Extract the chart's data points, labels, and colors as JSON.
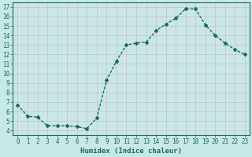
{
  "xlabel": "Humidex (Indice chaleur)",
  "x": [
    0,
    1,
    2,
    3,
    4,
    5,
    6,
    7,
    8,
    9,
    10,
    11,
    12,
    13,
    14,
    15,
    16,
    17,
    18,
    19,
    20,
    21,
    22,
    23
  ],
  "y": [
    6.7,
    5.5,
    5.4,
    4.5,
    4.5,
    4.5,
    4.4,
    4.2,
    5.3,
    9.3,
    11.3,
    13.0,
    13.2,
    13.3,
    14.5,
    15.2,
    15.8,
    16.8,
    16.8,
    15.1,
    14.0,
    13.2,
    12.5,
    12.0
  ],
  "line_color": "#1a6b5a",
  "bg_color": "#c8e8e8",
  "grid_color": "#b0d8d0",
  "tick_label_color": "#1a6b5a",
  "xlabel_color": "#1a6b5a",
  "ylim": [
    3.5,
    17.5
  ],
  "xlim": [
    -0.5,
    23.5
  ],
  "yticks": [
    4,
    5,
    6,
    7,
    8,
    9,
    10,
    11,
    12,
    13,
    14,
    15,
    16,
    17
  ],
  "xticks": [
    0,
    1,
    2,
    3,
    4,
    5,
    6,
    7,
    8,
    9,
    10,
    11,
    12,
    13,
    14,
    15,
    16,
    17,
    18,
    19,
    20,
    21,
    22,
    23
  ],
  "xtick_labels": [
    "0",
    "1",
    "2",
    "3",
    "4",
    "5",
    "6",
    "7",
    "8",
    "9",
    "10",
    "11",
    "12",
    "13",
    "14",
    "15",
    "16",
    "17",
    "18",
    "19",
    "20",
    "21",
    "22",
    "23"
  ],
  "marker": "D",
  "markersize": 2.0,
  "linewidth": 1.0,
  "tick_fontsize": 5.5,
  "xlabel_fontsize": 6.5
}
